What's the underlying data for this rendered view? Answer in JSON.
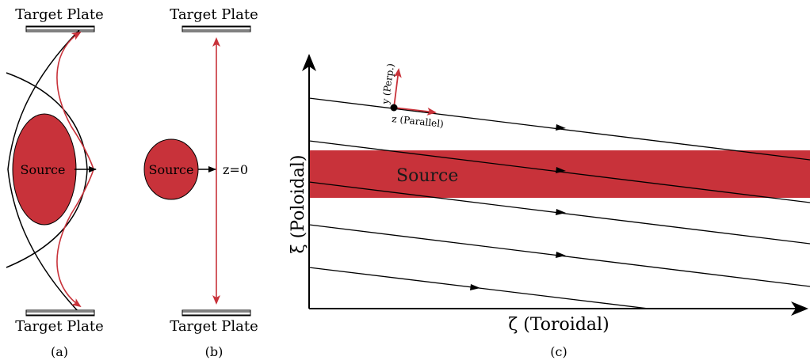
{
  "panel_a": {
    "caption": "(a)",
    "top_plate_label": "Target Plate",
    "bottom_plate_label": "Target Plate",
    "source_label": "Source"
  },
  "panel_b": {
    "caption": "(b)",
    "top_plate_label": "Target Plate",
    "bottom_plate_label": "Target Plate",
    "source_label": "Source",
    "midplane_label": "z=0"
  },
  "panel_c": {
    "caption": "(c)",
    "source_label": "Source",
    "x_axis_label": "ζ (Toroidal)",
    "y_axis_label": "ξ (Poloidal)",
    "perp_label": "y (Perp.)",
    "parallel_label": "z (Parallel)"
  },
  "colors": {
    "source_fill": "#c8323a",
    "arrow_red": "#c8323a",
    "line": "#000000"
  }
}
